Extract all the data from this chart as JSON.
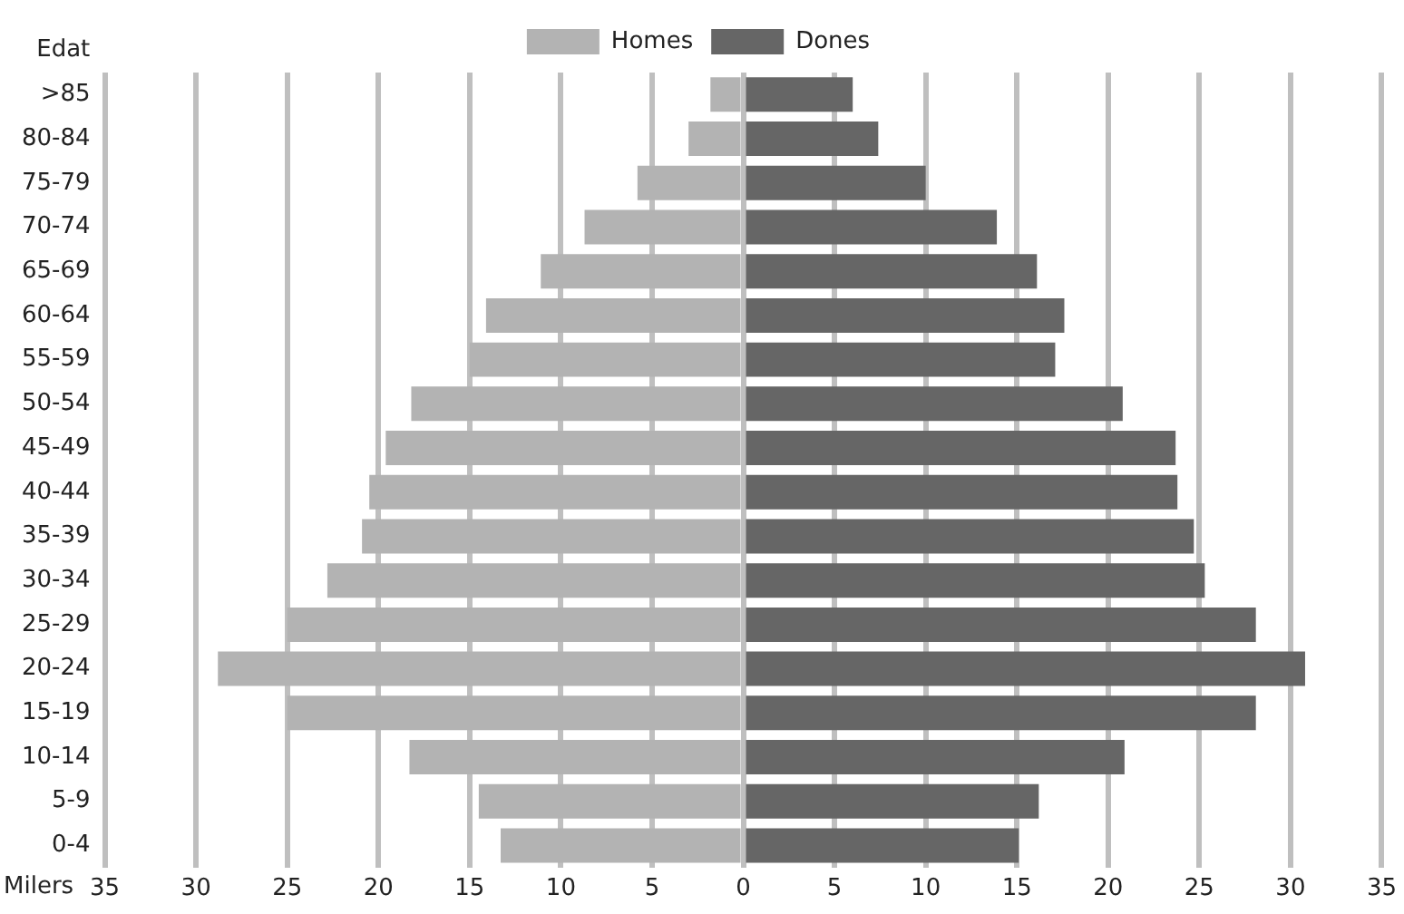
{
  "chart_data": {
    "type": "bar",
    "orientation": "horizontal",
    "stacked": true,
    "xlabel": "Milers",
    "ylabel": "Edat",
    "categories": [
      ">85",
      "80-84",
      "75-79",
      "70-74",
      "65-69",
      "60-64",
      "55-59",
      "50-54",
      "45-49",
      "40-44",
      "35-39",
      "30-34",
      "25-29",
      "20-24",
      "15-19",
      "10-14",
      "5-9",
      "0-4"
    ],
    "series": [
      {
        "name": "Homes",
        "color": "#b3b3b3",
        "values": [
          -1.8,
          -3.0,
          -5.8,
          -8.7,
          -11.1,
          -14.1,
          -15.0,
          -18.2,
          -19.6,
          -20.5,
          -20.9,
          -22.8,
          -25.0,
          -28.8,
          -25.0,
          -18.3,
          -14.5,
          -13.3
        ]
      },
      {
        "name": "Dones",
        "color": "#666666",
        "values": [
          6.0,
          7.4,
          10.0,
          13.9,
          16.1,
          17.6,
          17.1,
          20.8,
          23.7,
          23.8,
          24.7,
          25.3,
          28.1,
          30.8,
          28.1,
          20.9,
          16.2,
          15.1
        ]
      }
    ],
    "xlim": [
      -35,
      35
    ],
    "xticks": [
      {
        "value": -35,
        "label": "35"
      },
      {
        "value": -30,
        "label": "30"
      },
      {
        "value": -25,
        "label": "25"
      },
      {
        "value": -20,
        "label": "20"
      },
      {
        "value": -15,
        "label": "15"
      },
      {
        "value": -10,
        "label": "10"
      },
      {
        "value": -5,
        "label": "5"
      },
      0,
      5,
      10,
      15,
      20,
      25,
      30,
      35
    ],
    "grid": "x",
    "legend": "top"
  }
}
